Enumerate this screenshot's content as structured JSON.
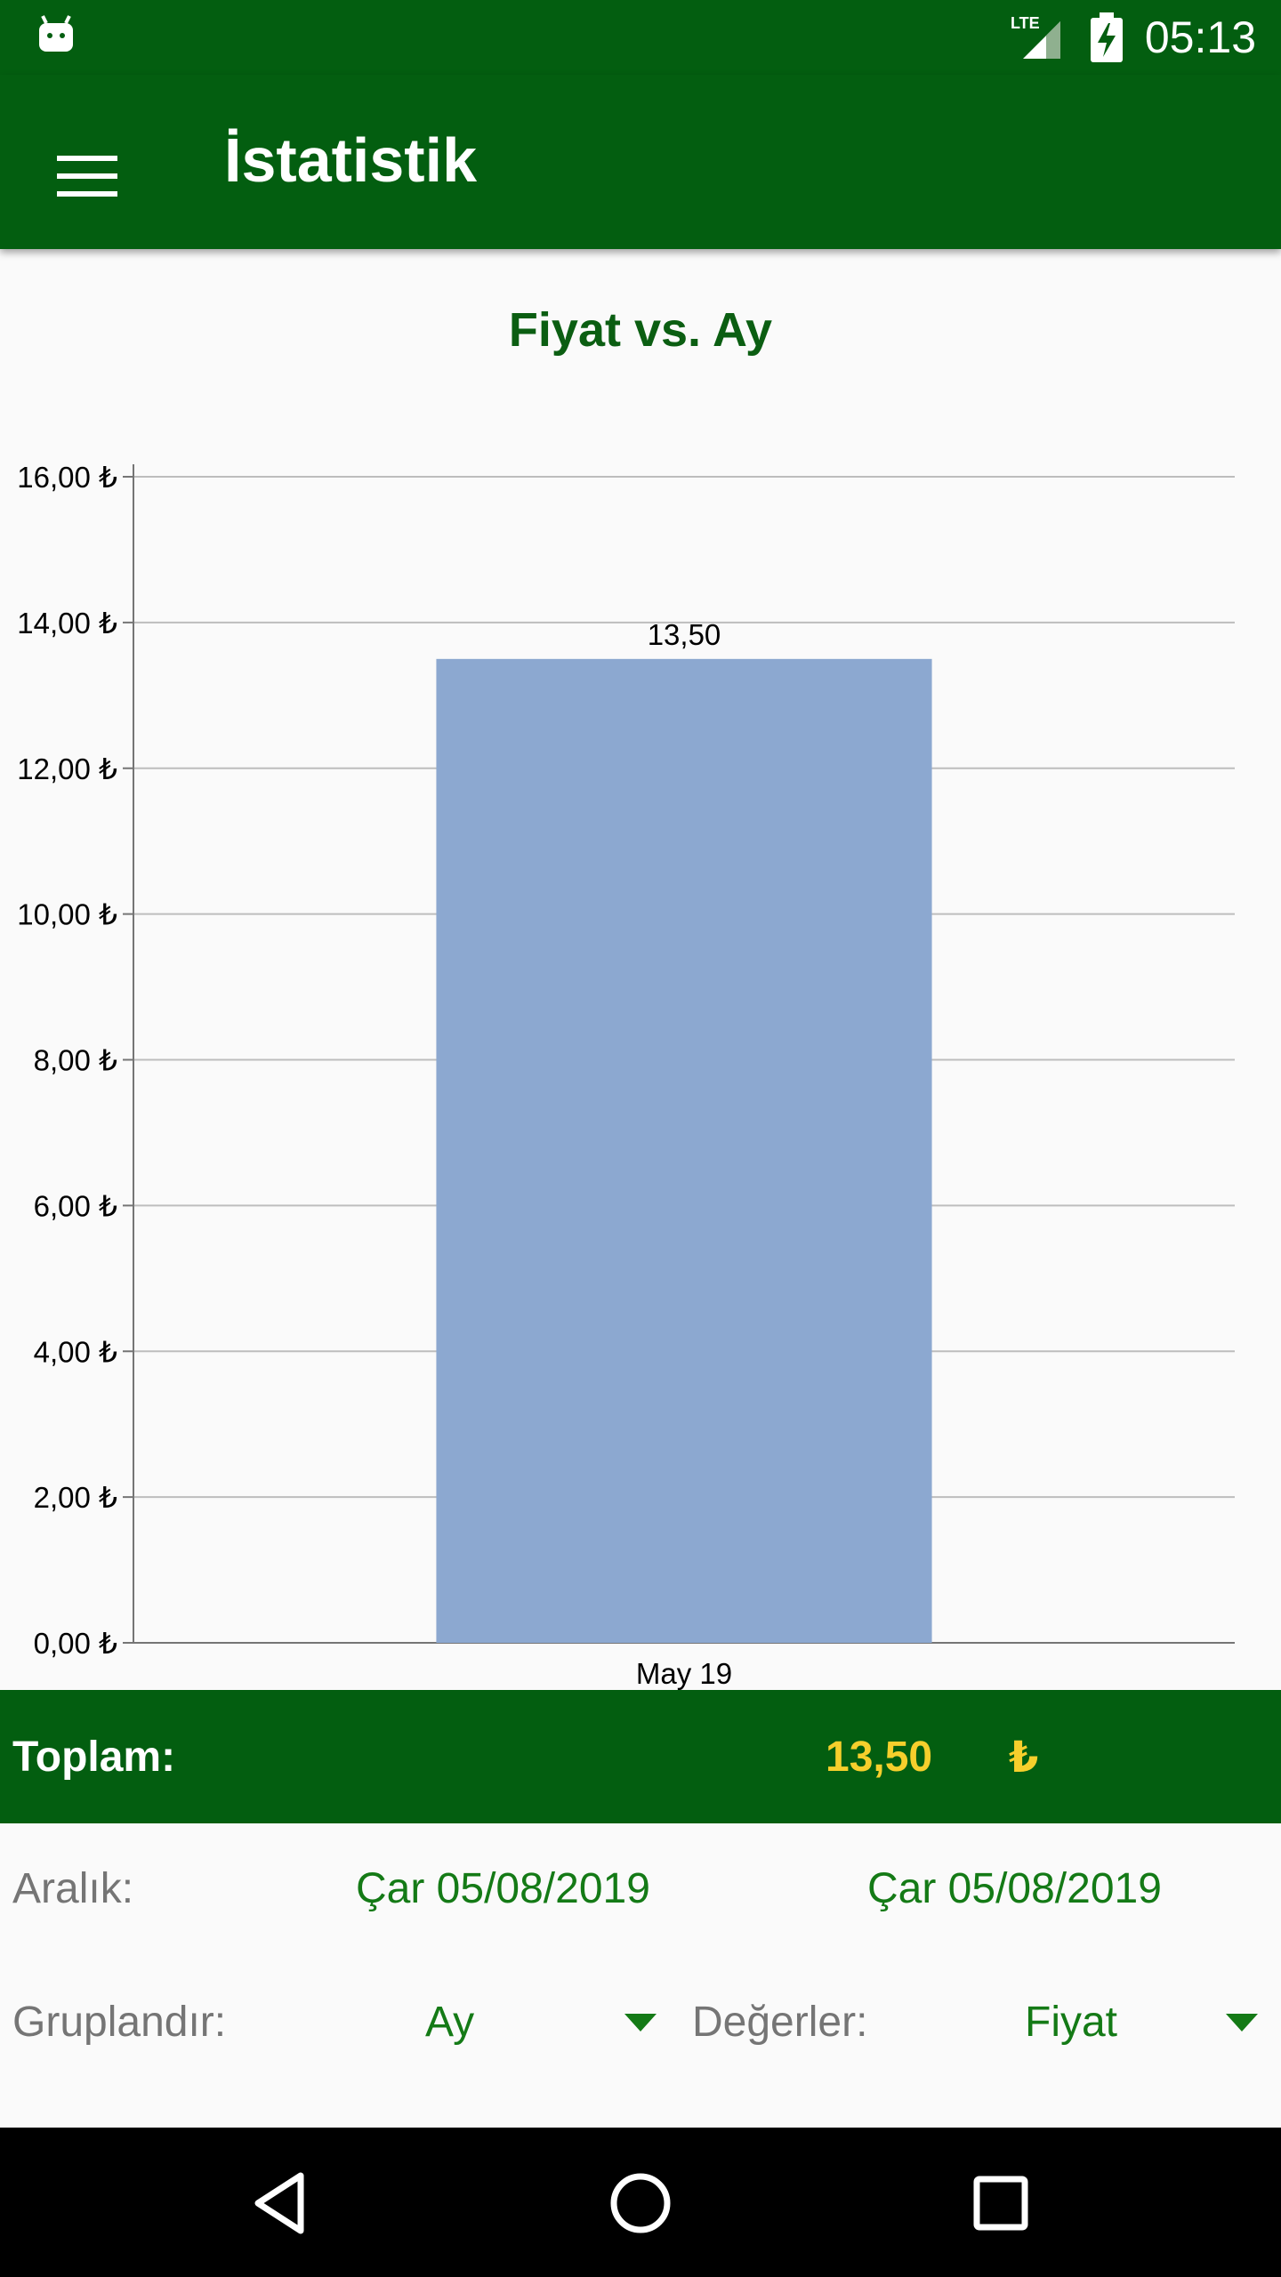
{
  "status_bar": {
    "time": "05:13",
    "network_label": "LTE",
    "icons": [
      "android-icon",
      "lte-signal-icon",
      "battery-charging-icon"
    ]
  },
  "app_bar": {
    "title": "İstatistik",
    "menu_icon": "hamburger-menu-icon"
  },
  "chart_data": {
    "type": "bar",
    "title": "Fiyat vs. Ay",
    "categories": [
      "May 19"
    ],
    "values": [
      13.5
    ],
    "data_labels": [
      "13,50"
    ],
    "ylim": [
      0,
      16
    ],
    "y_ticks": [
      0,
      2,
      4,
      6,
      8,
      10,
      12,
      14,
      16
    ],
    "y_tick_labels": [
      "0,00 ₺",
      "2,00 ₺",
      "4,00 ₺",
      "6,00 ₺",
      "8,00 ₺",
      "10,00 ₺",
      "12,00 ₺",
      "14,00 ₺",
      "16,00 ₺"
    ],
    "bar_color": "#8ca8d0",
    "grid": true
  },
  "total": {
    "label": "Toplam:",
    "value": "13,50",
    "currency": "₺"
  },
  "controls": {
    "range_label": "Aralık:",
    "range_start": "Çar 05/08/2019",
    "range_end": "Çar 05/08/2019",
    "group_label": "Gruplandır:",
    "group_value": "Ay",
    "values_label": "Değerler:",
    "values_value": "Fiyat"
  },
  "nav_bar": {
    "icons": [
      "back-icon",
      "home-icon",
      "recents-icon"
    ]
  },
  "colors": {
    "primary": "#035e10",
    "accent_yellow": "#f6cf2c",
    "control_green": "#147a16"
  }
}
